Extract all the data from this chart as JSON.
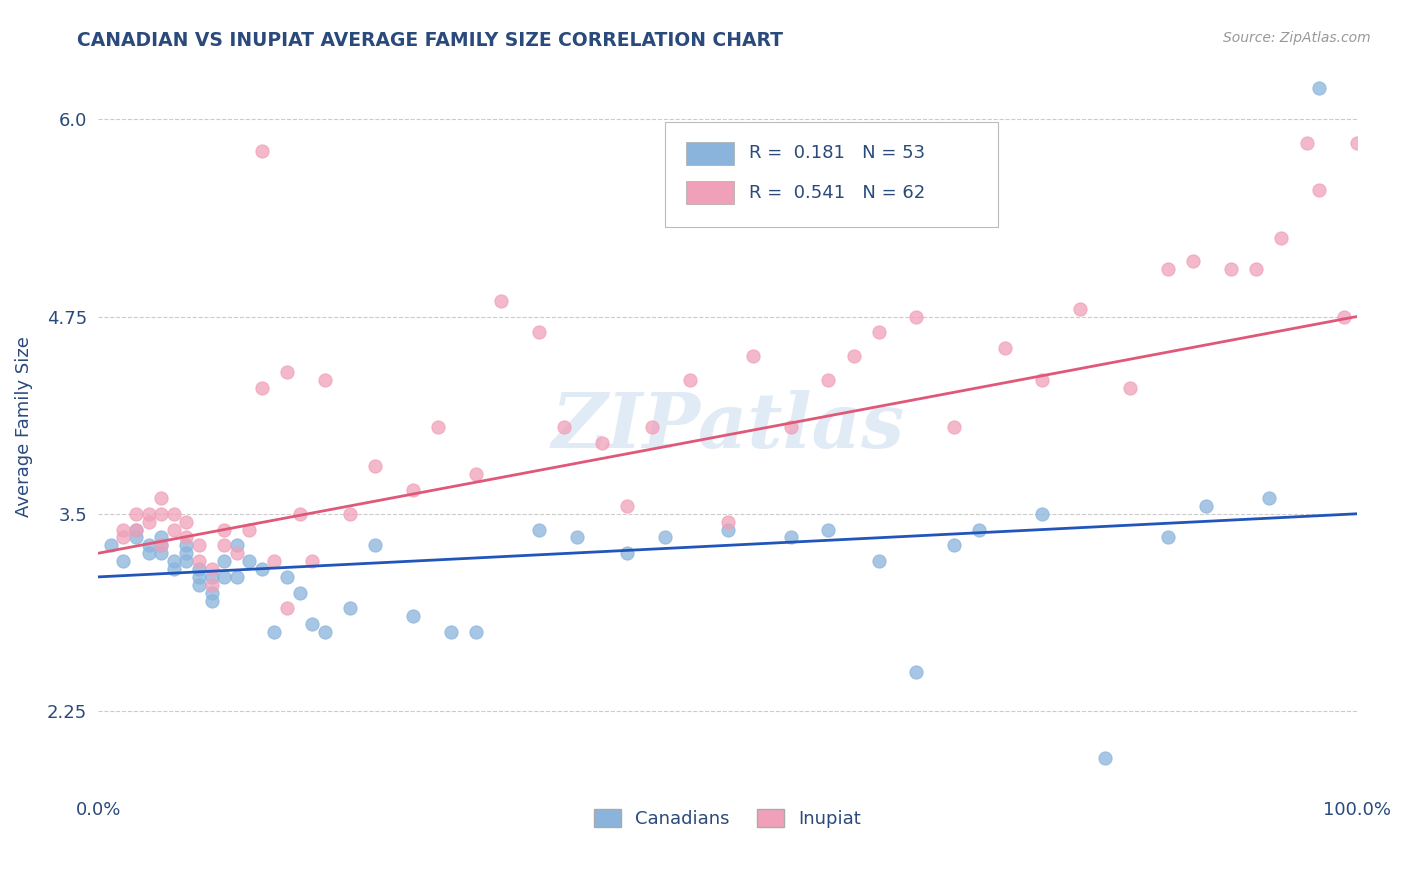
{
  "title": "CANADIAN VS INUPIAT AVERAGE FAMILY SIZE CORRELATION CHART",
  "source": "Source: ZipAtlas.com",
  "ylabel": "Average Family Size",
  "xlim": [
    0,
    100
  ],
  "ylim": [
    1.75,
    6.35
  ],
  "yticks": [
    2.25,
    3.5,
    4.75,
    6.0
  ],
  "xtick_labels": [
    "0.0%",
    "100.0%"
  ],
  "legend_labels": [
    "Canadians",
    "Inupiat"
  ],
  "R_canadian": 0.181,
  "N_canadian": 53,
  "R_inupiat": 0.541,
  "N_inupiat": 62,
  "color_canadian": "#8ab4dc",
  "color_inupiat": "#f0a0b8",
  "line_color_canadian": "#2255bb",
  "line_color_inupiat": "#e05878",
  "title_color": "#2a4a7c",
  "axis_color": "#2a4a7c",
  "tick_color": "#2a4a7c",
  "source_color": "#999999",
  "background_color": "#ffffff",
  "canadians_x": [
    1,
    2,
    3,
    3,
    4,
    4,
    5,
    5,
    5,
    6,
    6,
    7,
    7,
    7,
    8,
    8,
    8,
    9,
    9,
    9,
    10,
    10,
    11,
    11,
    12,
    13,
    14,
    15,
    16,
    17,
    18,
    20,
    22,
    25,
    28,
    30,
    35,
    38,
    42,
    45,
    50,
    55,
    58,
    62,
    65,
    68,
    70,
    75,
    80,
    85,
    88,
    93,
    97
  ],
  "canadians_y": [
    3.3,
    3.2,
    3.35,
    3.4,
    3.25,
    3.3,
    3.3,
    3.25,
    3.35,
    3.2,
    3.15,
    3.3,
    3.2,
    3.25,
    3.1,
    3.05,
    3.15,
    3.0,
    2.95,
    3.1,
    3.2,
    3.1,
    3.1,
    3.3,
    3.2,
    3.15,
    2.75,
    3.1,
    3.0,
    2.8,
    2.75,
    2.9,
    3.3,
    2.85,
    2.75,
    2.75,
    3.4,
    3.35,
    3.25,
    3.35,
    3.4,
    3.35,
    3.4,
    3.2,
    2.5,
    3.3,
    3.4,
    3.5,
    1.95,
    3.35,
    3.55,
    3.6,
    6.2
  ],
  "inupiat_x": [
    2,
    2,
    3,
    3,
    4,
    4,
    5,
    5,
    5,
    6,
    6,
    7,
    7,
    8,
    8,
    9,
    9,
    10,
    10,
    11,
    12,
    13,
    13,
    14,
    15,
    15,
    16,
    17,
    18,
    20,
    22,
    25,
    27,
    30,
    32,
    35,
    37,
    40,
    42,
    44,
    47,
    50,
    52,
    55,
    58,
    60,
    62,
    65,
    68,
    72,
    75,
    78,
    82,
    85,
    87,
    90,
    92,
    94,
    96,
    97,
    99,
    100
  ],
  "inupiat_y": [
    3.4,
    3.35,
    3.5,
    3.4,
    3.45,
    3.5,
    3.3,
    3.5,
    3.6,
    3.4,
    3.5,
    3.35,
    3.45,
    3.3,
    3.2,
    3.15,
    3.05,
    3.3,
    3.4,
    3.25,
    3.4,
    4.3,
    5.8,
    3.2,
    2.9,
    4.4,
    3.5,
    3.2,
    4.35,
    3.5,
    3.8,
    3.65,
    4.05,
    3.75,
    4.85,
    4.65,
    4.05,
    3.95,
    3.55,
    4.05,
    4.35,
    3.45,
    4.5,
    4.05,
    4.35,
    4.5,
    4.65,
    4.75,
    4.05,
    4.55,
    4.35,
    4.8,
    4.3,
    5.05,
    5.1,
    5.05,
    5.05,
    5.25,
    5.85,
    5.55,
    4.75,
    5.85
  ],
  "trend_canadian_x0": 0,
  "trend_canadian_y0": 3.1,
  "trend_canadian_x1": 100,
  "trend_canadian_y1": 3.5,
  "trend_inupiat_x0": 0,
  "trend_inupiat_y0": 3.25,
  "trend_inupiat_x1": 100,
  "trend_inupiat_y1": 4.75
}
